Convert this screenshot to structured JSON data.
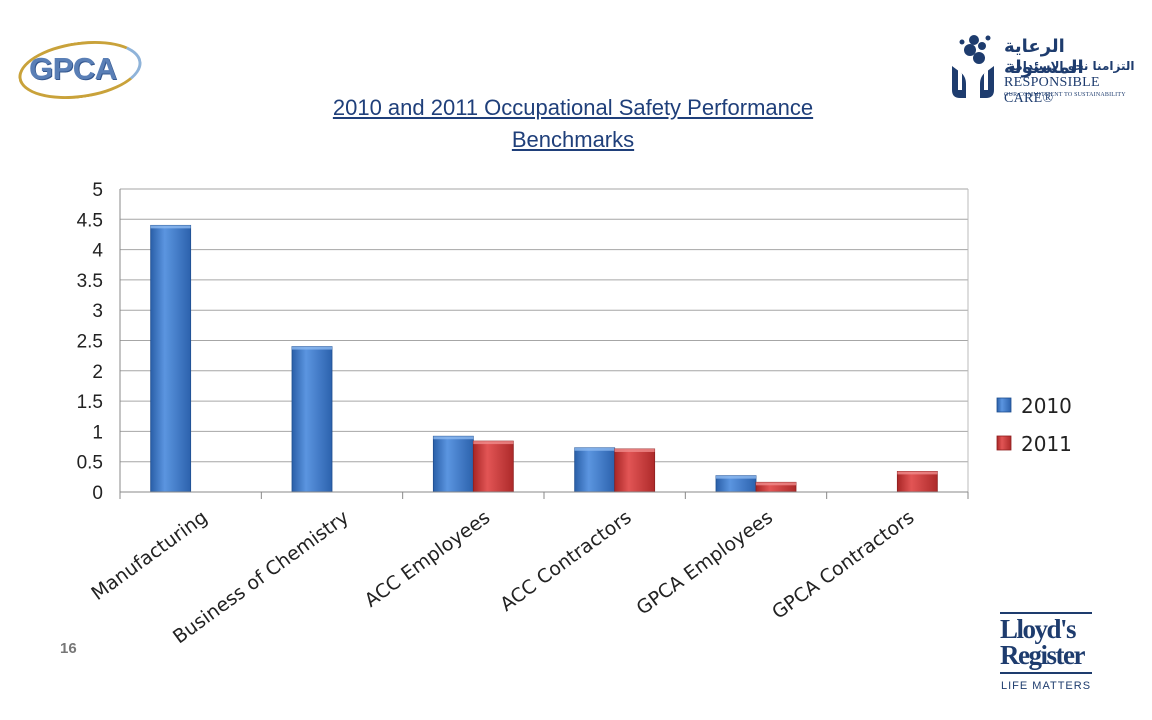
{
  "header": {
    "gpca_logo_text": "GPCA",
    "title_line1": "2010 and 2011 Occupational Safety Performance",
    "title_line2": "Benchmarks"
  },
  "rc_logo": {
    "arabic_line1": "الرعاية المسئولة",
    "arabic_line2": "التزامنا نحو الاستدامة",
    "name": "RESPONSIBLE CARE®",
    "tagline": "OUR COMMITMENT TO SUSTAINABILITY"
  },
  "lr_logo": {
    "word1": "Lloyd's",
    "word2": "Register",
    "tagline": "LIFE MATTERS"
  },
  "footer": {
    "page_number": "16"
  },
  "colors": {
    "series_2010": "#3f7fd0",
    "series_2011": "#d43a3a",
    "title": "#1f3f7a",
    "logo_blue": "#1e3c6e"
  },
  "chart_data": {
    "type": "bar",
    "title": "2010 and 2011 Occupational Safety Performance Benchmarks",
    "categories": [
      "Manufacturing",
      "Business of Chemistry",
      "ACC Employees",
      "ACC Contractors",
      "GPCA Employees",
      "GPCA Contractors"
    ],
    "series": [
      {
        "name": "2010",
        "values": [
          4.4,
          2.4,
          0.92,
          0.73,
          0.27,
          null
        ]
      },
      {
        "name": "2011",
        "values": [
          null,
          null,
          0.84,
          0.71,
          0.16,
          0.34
        ]
      }
    ],
    "yticks": [
      "0",
      "0.5",
      "1",
      "1.5",
      "2",
      "2.5",
      "3",
      "3.5",
      "4",
      "4.5",
      "5"
    ],
    "ylim": [
      0,
      5
    ],
    "grid": true,
    "legend_position": "right"
  }
}
